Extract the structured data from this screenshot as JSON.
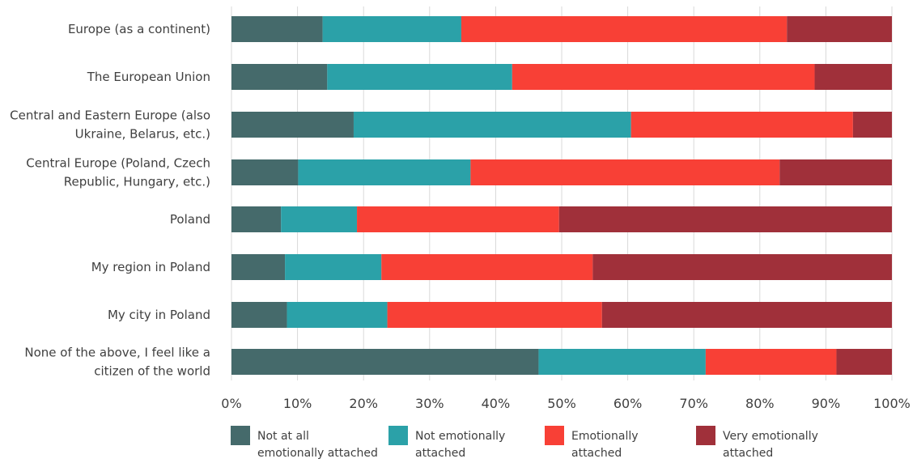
{
  "chart_data": {
    "type": "bar",
    "orientation": "horizontal",
    "stacked": true,
    "title": "",
    "xlabel": "",
    "ylabel": "",
    "xlim": [
      0,
      100
    ],
    "x_ticks": [
      "0%",
      "10%",
      "20%",
      "30%",
      "40%",
      "50%",
      "60%",
      "70%",
      "80%",
      "90%",
      "100%"
    ],
    "grid": "vertical",
    "legend_position": "bottom",
    "categories": [
      [
        "Europe (as a continent)"
      ],
      [
        "The European Union"
      ],
      [
        "Central and Eastern Europe (also",
        "Ukraine, Belarus, etc.)"
      ],
      [
        "Central Europe (Poland, Czech",
        "Republic, Hungary, etc.)"
      ],
      [
        "Poland"
      ],
      [
        "My region in Poland"
      ],
      [
        "My city in Poland"
      ],
      [
        "None of the above, I feel like a",
        "citizen of the world"
      ]
    ],
    "series": [
      {
        "name": [
          "Not at all",
          "emotionally attached"
        ],
        "color": "#456a6b",
        "values": [
          13.8,
          14.5,
          18.5,
          10.1,
          7.5,
          8.1,
          8.4,
          46.5
        ]
      },
      {
        "name": [
          "Not emotionally",
          "attached"
        ],
        "color": "#2ba1a8",
        "values": [
          21.0,
          28.0,
          42.0,
          26.1,
          11.5,
          14.6,
          15.2,
          25.3
        ]
      },
      {
        "name": [
          "Emotionally",
          "attached"
        ],
        "color": "#f84036",
        "values": [
          49.3,
          45.8,
          33.6,
          46.8,
          30.6,
          32.0,
          32.5,
          19.8
        ]
      },
      {
        "name": [
          "Very emotionally",
          "attached"
        ],
        "color": "#a0303a",
        "values": [
          15.9,
          11.7,
          5.9,
          17.0,
          50.4,
          45.3,
          43.9,
          8.4
        ]
      }
    ]
  }
}
